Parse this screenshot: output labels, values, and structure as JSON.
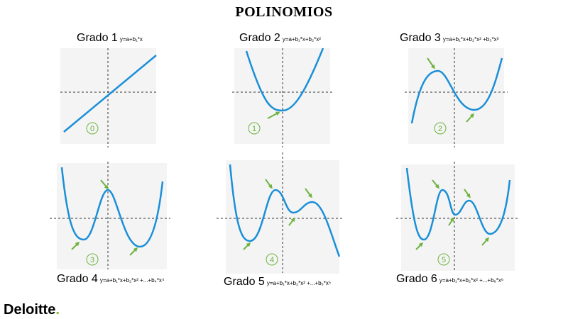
{
  "title": "POLINOMIOS",
  "panels": [
    {
      "grado": "Grado 1",
      "formula": "y=a+b₁*x",
      "badge": "0"
    },
    {
      "grado": "Grado 2",
      "formula": "y=a+b₁*x+b₂*x²",
      "badge": "1"
    },
    {
      "grado": "Grado 3",
      "formula": "y=a+b₁*x+b₂*x² +b₃*x³",
      "badge": "2"
    },
    {
      "grado": "Grado 4",
      "formula": "y=a+b₁*x+b₂*x² +...+b₄*x⁴",
      "badge": "3"
    },
    {
      "grado": "Grado 5",
      "formula": "y=a+b₁*x+b₂*x² +...+b₅*x⁵",
      "badge": "4"
    },
    {
      "grado": "Grado 6",
      "formula": "y=a+b₁*x+b₂*x² +...+b₆*x⁶",
      "badge": "5"
    }
  ],
  "logo": {
    "text": "Deloitte",
    "dot": "."
  },
  "colors": {
    "curve": "#1a8fd8",
    "arrow": "#6db33f",
    "panel_bg": "#f4f4f4",
    "axis": "#333333",
    "logo_dot": "#86bc25"
  }
}
